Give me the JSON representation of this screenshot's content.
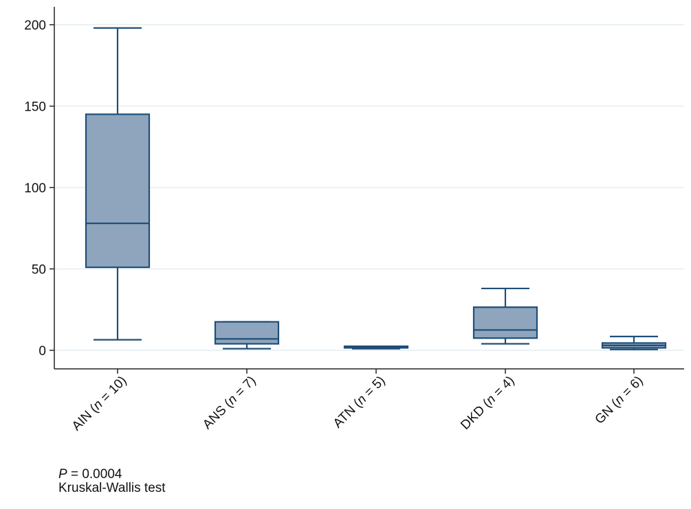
{
  "chart_data": {
    "type": "box",
    "title": "",
    "xlabel": "",
    "ylabel": "",
    "ylim": [
      -12,
      212
    ],
    "yticks": [
      0,
      50,
      100,
      150,
      200
    ],
    "grid": true,
    "colors": {
      "box_fill": "#8ea5bd",
      "box_stroke": "#1f4e79",
      "grid": "#e4eef4",
      "axis": "#222222"
    },
    "categories": [
      {
        "name": "AIN",
        "n": "10"
      },
      {
        "name": "ANS",
        "n": "7"
      },
      {
        "name": "ATN",
        "n": "5"
      },
      {
        "name": "DKD",
        "n": "4"
      },
      {
        "name": "GN",
        "n": "6"
      }
    ],
    "boxes": [
      {
        "min": 6.5,
        "q1": 51,
        "median": 78,
        "q3": 145,
        "max": 198
      },
      {
        "min": 1,
        "q1": 4,
        "median": 7,
        "q3": 17.5,
        "max": 17.5
      },
      {
        "min": 1,
        "q1": 1.5,
        "median": 2,
        "q3": 2.5,
        "max": 2.5
      },
      {
        "min": 4,
        "q1": 7.5,
        "median": 12.5,
        "q3": 26.5,
        "max": 38
      },
      {
        "min": 0.5,
        "q1": 1.5,
        "median": 3,
        "q3": 4.5,
        "max": 8.5
      }
    ]
  },
  "notes": {
    "p_label": "P",
    "p_value": " = 0.0004",
    "test": "Kruskal-Wallis test"
  }
}
